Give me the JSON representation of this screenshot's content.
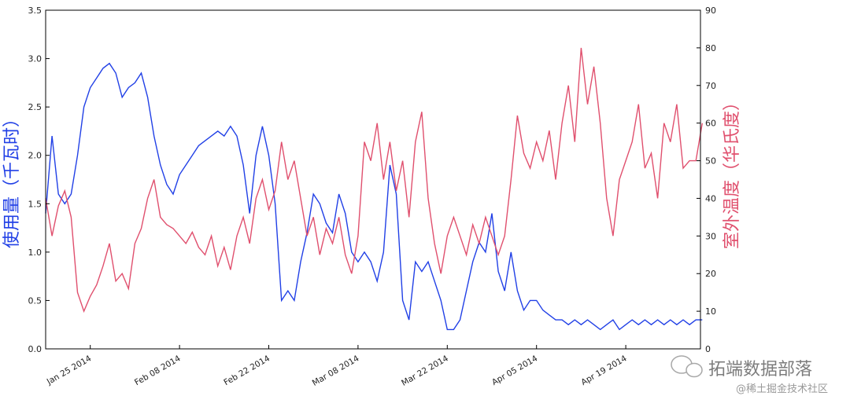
{
  "chart_data": {
    "type": "line",
    "x_start": "2014-01-18",
    "x_step": "1 day",
    "x_end": "2014-05-01",
    "xticks": [
      {
        "label": "Jan 25 2014",
        "day": 7
      },
      {
        "label": "Feb 08 2014",
        "day": 21
      },
      {
        "label": "Feb 22 2014",
        "day": 35
      },
      {
        "label": "Mar 08 2014",
        "day": 49
      },
      {
        "label": "Mar 22 2014",
        "day": 63
      },
      {
        "label": "Apr 05 2014",
        "day": 77
      },
      {
        "label": "Apr 19 2014",
        "day": 91
      }
    ],
    "ylabel_left": "使用量（千瓦时）",
    "ylabel_right": "室外温度（华氏度）",
    "ylim_left": [
      0,
      3.5
    ],
    "ylim_right": [
      0,
      90
    ],
    "yticks_left": [
      "0.0",
      "0.5",
      "1.0",
      "1.5",
      "2.0",
      "2.5",
      "3.0",
      "3.5"
    ],
    "yticks_right": [
      "0",
      "10",
      "20",
      "30",
      "40",
      "50",
      "60",
      "70",
      "80",
      "90"
    ],
    "grid": false,
    "series": [
      {
        "name": "usage",
        "axis": "left",
        "color": "#2140e6",
        "values": [
          1.4,
          2.2,
          1.6,
          1.5,
          1.6,
          2.0,
          2.5,
          2.7,
          2.8,
          2.9,
          2.95,
          2.85,
          2.6,
          2.7,
          2.75,
          2.85,
          2.6,
          2.2,
          1.9,
          1.7,
          1.6,
          1.8,
          1.9,
          2.0,
          2.1,
          2.15,
          2.2,
          2.25,
          2.2,
          2.3,
          2.2,
          1.9,
          1.4,
          2.0,
          2.3,
          2.0,
          1.5,
          0.5,
          0.6,
          0.5,
          0.9,
          1.2,
          1.6,
          1.5,
          1.3,
          1.2,
          1.6,
          1.4,
          1.0,
          0.9,
          1.0,
          0.9,
          0.7,
          1.0,
          1.9,
          1.6,
          0.5,
          0.3,
          0.9,
          0.8,
          0.9,
          0.7,
          0.5,
          0.2,
          0.2,
          0.3,
          0.6,
          0.9,
          1.1,
          1.0,
          1.4,
          0.8,
          0.6,
          1.0,
          0.6,
          0.4,
          0.5,
          0.5,
          0.4,
          0.35,
          0.3,
          0.3,
          0.25,
          0.3,
          0.25,
          0.3,
          0.25,
          0.2,
          0.25,
          0.3,
          0.2,
          0.25,
          0.3,
          0.25,
          0.3,
          0.25,
          0.3,
          0.25,
          0.3,
          0.25,
          0.3,
          0.25,
          0.3,
          0.3
        ]
      },
      {
        "name": "outdoor temperature",
        "axis": "right",
        "color": "#e0506e",
        "values": [
          40,
          30,
          38,
          42,
          35,
          15,
          10,
          14,
          17,
          22,
          28,
          18,
          20,
          16,
          28,
          32,
          40,
          45,
          35,
          33,
          32,
          30,
          28,
          31,
          27,
          25,
          30,
          22,
          27,
          21,
          30,
          35,
          28,
          40,
          45,
          37,
          42,
          55,
          45,
          50,
          40,
          30,
          35,
          25,
          32,
          28,
          35,
          25,
          20,
          30,
          55,
          50,
          60,
          45,
          55,
          42,
          50,
          35,
          55,
          63,
          40,
          28,
          20,
          30,
          35,
          30,
          25,
          33,
          28,
          35,
          30,
          25,
          30,
          45,
          62,
          52,
          48,
          55,
          50,
          58,
          45,
          60,
          70,
          55,
          80,
          65,
          75,
          60,
          40,
          30,
          45,
          50,
          55,
          65,
          48,
          52,
          40,
          60,
          55,
          65,
          48,
          50,
          50,
          60
        ]
      }
    ]
  },
  "watermark": {
    "brand": "拓端数据部落",
    "credit": "@稀土掘金技术社区"
  }
}
